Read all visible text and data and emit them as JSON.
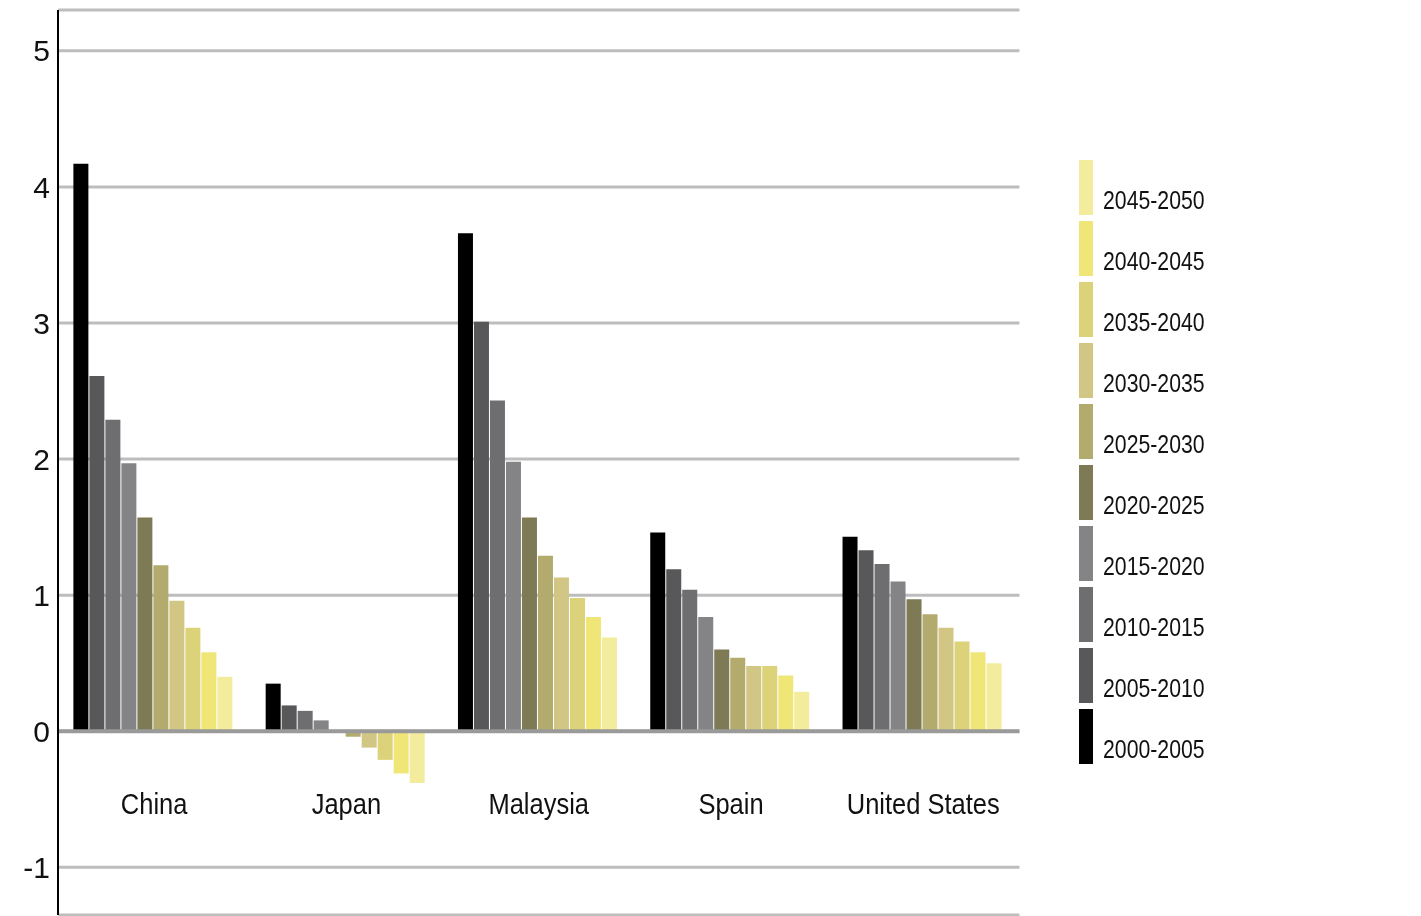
{
  "chart_data": {
    "type": "bar",
    "categories": [
      "China",
      "Japan",
      "Malaysia",
      "Spain",
      "United States"
    ],
    "series": [
      {
        "name": "2000-2005",
        "color": "#000000",
        "values": [
          4.17,
          0.35,
          3.66,
          1.46,
          1.43
        ]
      },
      {
        "name": "2005-2010",
        "color": "#58585a",
        "values": [
          2.61,
          0.19,
          3.01,
          1.19,
          1.33
        ]
      },
      {
        "name": "2010-2015",
        "color": "#6e6e70",
        "values": [
          2.29,
          0.15,
          2.43,
          1.04,
          1.23
        ]
      },
      {
        "name": "2015-2020",
        "color": "#848486",
        "values": [
          1.97,
          0.08,
          1.98,
          0.84,
          1.1
        ]
      },
      {
        "name": "2020-2025",
        "color": "#7d7a55",
        "values": [
          1.57,
          0.0,
          1.57,
          0.6,
          0.97
        ]
      },
      {
        "name": "2025-2030",
        "color": "#b3aa6e",
        "values": [
          1.22,
          -0.04,
          1.29,
          0.54,
          0.86
        ]
      },
      {
        "name": "2030-2035",
        "color": "#d2c684",
        "values": [
          0.96,
          -0.12,
          1.13,
          0.48,
          0.76
        ]
      },
      {
        "name": "2035-2040",
        "color": "#dbd27a",
        "values": [
          0.76,
          -0.21,
          0.98,
          0.48,
          0.66
        ]
      },
      {
        "name": "2040-2045",
        "color": "#f0e678",
        "values": [
          0.58,
          -0.31,
          0.84,
          0.41,
          0.58
        ]
      },
      {
        "name": "2045-2050",
        "color": "#f3ec9c",
        "values": [
          0.4,
          -0.38,
          0.69,
          0.29,
          0.5
        ]
      }
    ],
    "ylim": [
      -1.35,
      5.3
    ],
    "yticks": [
      -1,
      0,
      1,
      2,
      3,
      4,
      5
    ],
    "grid": "y",
    "legend": "right"
  }
}
